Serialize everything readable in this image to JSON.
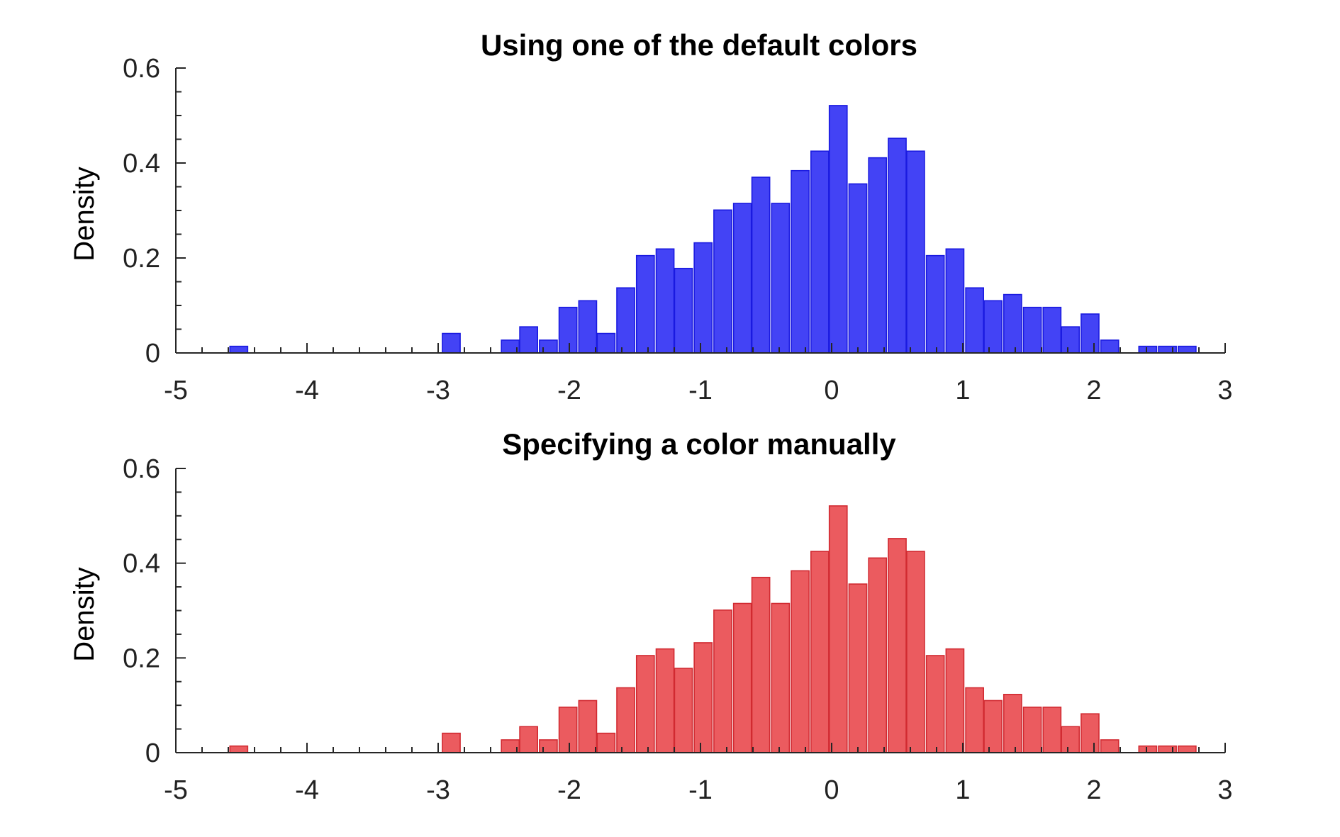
{
  "chart_data": [
    {
      "type": "bar",
      "title": "Using one of the default colors",
      "xlabel": "",
      "ylabel": "Density",
      "xlim": [
        -5,
        3
      ],
      "ylim": [
        0,
        0.6
      ],
      "xticks": [
        "-5",
        "-4",
        "-3",
        "-2",
        "-1",
        "0",
        "1",
        "2",
        "3"
      ],
      "yticks": [
        "0",
        "0.2",
        "0.4",
        "0.6"
      ],
      "bin_width": 0.1475,
      "bin_centers": [
        -4.52,
        -4.37,
        -4.22,
        -4.08,
        -3.93,
        -3.78,
        -3.63,
        -3.49,
        -3.34,
        -3.19,
        -3.04,
        -2.9,
        -2.75,
        -2.6,
        -2.45,
        -2.31,
        -2.16,
        -2.01,
        -1.86,
        -1.72,
        -1.57,
        -1.42,
        -1.27,
        -1.13,
        -0.98,
        -0.83,
        -0.68,
        -0.54,
        -0.39,
        -0.24,
        -0.09,
        0.05,
        0.2,
        0.35,
        0.5,
        0.64,
        0.79,
        0.94,
        1.09,
        1.23,
        1.38,
        1.53,
        1.68,
        1.82,
        1.97,
        2.12,
        2.27,
        2.41,
        2.56,
        2.71
      ],
      "values": [
        0.014,
        0,
        0,
        0,
        0,
        0,
        0,
        0,
        0,
        0,
        0,
        0.041,
        0,
        0,
        0.027,
        0.055,
        0.027,
        0.096,
        0.11,
        0.041,
        0.137,
        0.205,
        0.219,
        0.178,
        0.232,
        0.301,
        0.315,
        0.37,
        0.315,
        0.384,
        0.425,
        0.521,
        0.356,
        0.411,
        0.452,
        0.425,
        0.205,
        0.219,
        0.137,
        0.11,
        0.123,
        0.096,
        0.096,
        0.055,
        0.082,
        0.027,
        0,
        0.014,
        0.014,
        0.014
      ],
      "face_color": "#4343f5",
      "edge_color": "#1a1ae0"
    },
    {
      "type": "bar",
      "title": "Specifying a color manually",
      "xlabel": "",
      "ylabel": "Density",
      "xlim": [
        -5,
        3
      ],
      "ylim": [
        0,
        0.6
      ],
      "xticks": [
        "-5",
        "-4",
        "-3",
        "-2",
        "-1",
        "0",
        "1",
        "2",
        "3"
      ],
      "yticks": [
        "0",
        "0.2",
        "0.4",
        "0.6"
      ],
      "bin_width": 0.1475,
      "bin_centers": [
        -4.52,
        -4.37,
        -4.22,
        -4.08,
        -3.93,
        -3.78,
        -3.63,
        -3.49,
        -3.34,
        -3.19,
        -3.04,
        -2.9,
        -2.75,
        -2.6,
        -2.45,
        -2.31,
        -2.16,
        -2.01,
        -1.86,
        -1.72,
        -1.57,
        -1.42,
        -1.27,
        -1.13,
        -0.98,
        -0.83,
        -0.68,
        -0.54,
        -0.39,
        -0.24,
        -0.09,
        0.05,
        0.2,
        0.35,
        0.5,
        0.64,
        0.79,
        0.94,
        1.09,
        1.23,
        1.38,
        1.53,
        1.68,
        1.82,
        1.97,
        2.12,
        2.27,
        2.41,
        2.56,
        2.71
      ],
      "values": [
        0.014,
        0,
        0,
        0,
        0,
        0,
        0,
        0,
        0,
        0,
        0,
        0.041,
        0,
        0,
        0.027,
        0.055,
        0.027,
        0.096,
        0.11,
        0.041,
        0.137,
        0.205,
        0.219,
        0.178,
        0.232,
        0.301,
        0.315,
        0.37,
        0.315,
        0.384,
        0.425,
        0.521,
        0.356,
        0.411,
        0.452,
        0.425,
        0.205,
        0.219,
        0.137,
        0.11,
        0.123,
        0.096,
        0.096,
        0.055,
        0.082,
        0.027,
        0,
        0.014,
        0.014,
        0.014
      ],
      "face_color": "#eb5b5f",
      "edge_color": "#d12a31"
    }
  ]
}
